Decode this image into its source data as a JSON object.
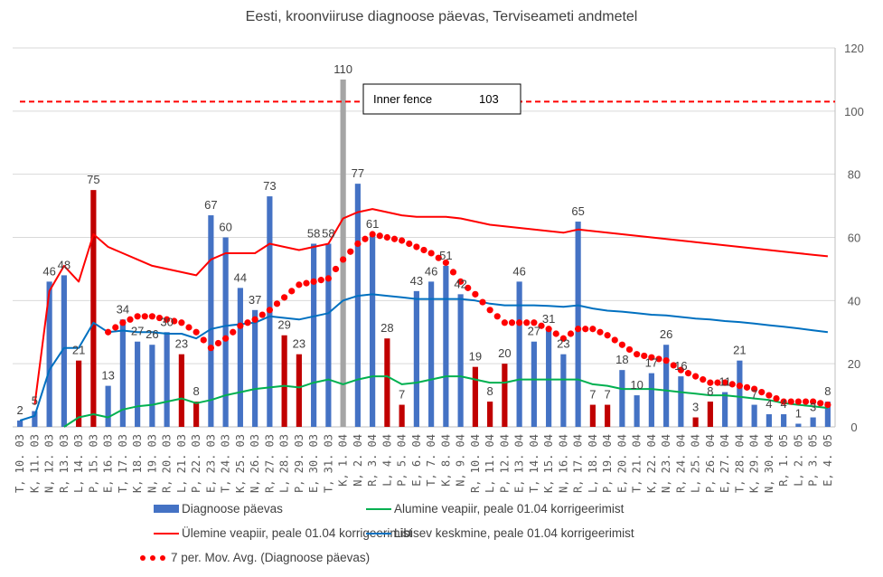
{
  "chart_data": {
    "type": "bar",
    "title": "Eesti, kroonviiruse diagnoose päevas, Terviseameti andmetel",
    "xlabel": "",
    "ylabel": "",
    "ylim": [
      0,
      120
    ],
    "y_ticks": [
      0,
      20,
      40,
      60,
      80,
      100,
      120
    ],
    "y_axis_side": "right",
    "grid": true,
    "legend_position": "bottom",
    "categories": [
      "T, 10. 03",
      "K, 11. 03",
      "N, 12. 03",
      "R, 13. 03",
      "L, 14. 03",
      "P, 15. 03",
      "E, 16. 03",
      "T, 17. 03",
      "K, 18. 03",
      "N, 19. 03",
      "R, 20. 03",
      "L, 21. 03",
      "P, 22. 03",
      "E, 23. 03",
      "T, 24. 03",
      "K, 25. 03",
      "N, 26. 03",
      "R, 27. 03",
      "L, 28. 03",
      "P, 29. 03",
      "E, 30. 03",
      "T, 31. 03",
      "K, 1. 04",
      "N, 2. 04",
      "R, 3. 04",
      "L, 4. 04",
      "P, 5. 04",
      "E, 6. 04",
      "T, 7. 04",
      "K, 8. 04",
      "N, 9. 04",
      "R, 10. 04",
      "L, 11. 04",
      "P, 12. 04",
      "E, 13. 04",
      "T, 14. 04",
      "K, 15. 04",
      "N, 16. 04",
      "R, 17. 04",
      "L, 18. 04",
      "P, 19. 04",
      "E, 20. 04",
      "T, 21. 04",
      "K, 22. 04",
      "N, 23. 04",
      "R, 24. 04",
      "L, 25. 04",
      "P, 26. 04",
      "E, 27. 04",
      "T, 28. 04",
      "K, 29. 04",
      "N, 30. 04",
      "R, 1. 05",
      "L, 2. 05",
      "P, 3. 05",
      "E, 4. 05"
    ],
    "series": [
      {
        "name": "Diagnoose päevas",
        "kind": "bar",
        "color": "#4472C4",
        "weekend_color": "#C00000",
        "outlier_color": "#A5A5A5",
        "values": [
          2,
          5,
          46,
          48,
          21,
          75,
          13,
          34,
          27,
          26,
          30,
          23,
          8,
          67,
          60,
          44,
          37,
          73,
          29,
          23,
          58,
          58,
          110,
          77,
          61,
          28,
          7,
          43,
          46,
          51,
          42,
          19,
          8,
          20,
          46,
          27,
          31,
          23,
          65,
          7,
          7,
          18,
          10,
          17,
          26,
          16,
          3,
          8,
          11,
          21,
          7,
          4,
          4,
          1,
          3,
          8
        ],
        "bar_kind": [
          "w",
          "w",
          "w",
          "w",
          "we",
          "we",
          "w",
          "w",
          "w",
          "w",
          "w",
          "we",
          "we",
          "w",
          "w",
          "w",
          "w",
          "w",
          "we",
          "we",
          "w",
          "w",
          "out",
          "w",
          "w",
          "we",
          "we",
          "w",
          "w",
          "w",
          "w",
          "we",
          "we",
          "we",
          "w",
          "w",
          "w",
          "w",
          "w",
          "we",
          "we",
          "w",
          "w",
          "w",
          "w",
          "w",
          "we",
          "we",
          "w",
          "w",
          "w",
          "w",
          "w",
          "w",
          "w",
          "w"
        ]
      },
      {
        "name": "Ülemine veapiir, peale 01.04 korrigeerimist",
        "kind": "line",
        "color": "#FF0000",
        "values": [
          null,
          7,
          43,
          51,
          46,
          61,
          57,
          55,
          53,
          51,
          50,
          49,
          48,
          53,
          55,
          55,
          55,
          58,
          57,
          56,
          57,
          58,
          66,
          68,
          69,
          68,
          67,
          66.5,
          66.5,
          66.5,
          66,
          65,
          64,
          63.5,
          63,
          62.5,
          62,
          61.5,
          62.5,
          62,
          61.5,
          61,
          60.5,
          60,
          59.5,
          59,
          58.5,
          58,
          57.5,
          57,
          56.5,
          56,
          55.5,
          55,
          54.5,
          54
        ]
      },
      {
        "name": "Libisev keskmine, peale 01.04 korrigeerimist",
        "kind": "line",
        "color": "#0070C0",
        "values": [
          2,
          3.5,
          18,
          25,
          25,
          33,
          30,
          30.5,
          30,
          30,
          29.5,
          29.5,
          28,
          31,
          32,
          32.5,
          33,
          35,
          34.5,
          34,
          35,
          36,
          40,
          41.5,
          42,
          41.5,
          41,
          40.5,
          40.5,
          40.5,
          40.5,
          40,
          39,
          38.5,
          38.5,
          38.5,
          38.3,
          38,
          38.5,
          37.5,
          36.8,
          36.5,
          36,
          35.5,
          35.3,
          34.8,
          34.3,
          34,
          33.5,
          33.2,
          32.7,
          32.2,
          31.7,
          31.2,
          30.6,
          30
        ]
      },
      {
        "name": "Alumine veapiir, peale 01.04 korrigeerimist",
        "kind": "line",
        "color": "#00B050",
        "values": [
          null,
          5,
          null,
          0,
          3,
          4,
          3,
          5.5,
          6.5,
          7,
          8,
          9,
          7.5,
          8.5,
          10,
          11,
          12,
          12.5,
          13,
          12.5,
          14,
          15,
          13.5,
          15,
          16,
          16,
          13.5,
          14,
          15,
          16,
          16,
          15,
          14,
          14,
          15,
          15,
          15,
          15,
          15,
          13.5,
          13,
          12,
          12,
          12,
          11.5,
          11,
          10.5,
          10,
          10,
          9.5,
          9,
          8.5,
          7.5,
          7,
          6.5,
          6
        ]
      },
      {
        "name": "7 per. Mov. Avg. (Diagnoose päevas)",
        "kind": "dotted-line",
        "color": "#FF0000",
        "values": [
          null,
          null,
          null,
          null,
          null,
          null,
          30,
          33,
          35,
          35,
          34,
          33,
          30,
          25,
          28,
          32,
          34,
          37,
          41,
          45,
          46,
          47,
          53,
          58,
          61,
          60,
          59,
          57,
          55,
          52,
          46,
          42,
          37,
          33,
          33,
          33,
          31,
          28,
          31,
          31,
          29,
          26,
          23,
          22,
          21,
          18,
          16,
          14,
          14,
          13,
          12,
          10,
          8,
          8,
          8,
          7
        ]
      },
      {
        "name": "Inner fence",
        "kind": "reference-line",
        "color": "#FF0000",
        "value": 103
      }
    ],
    "annotations": [
      {
        "label": "Inner fence",
        "value_text": "103"
      }
    ]
  },
  "legend": {
    "items": [
      "Diagnoose päevas",
      "Alumine veapiir, peale 01.04 korrigeerimist",
      "Ülemine veapiir, peale 01.04 korrigeerimist",
      "Libisev keskmine, peale 01.04 korrigeerimist",
      "7 per. Mov. Avg. (Diagnoose päevas)"
    ]
  }
}
